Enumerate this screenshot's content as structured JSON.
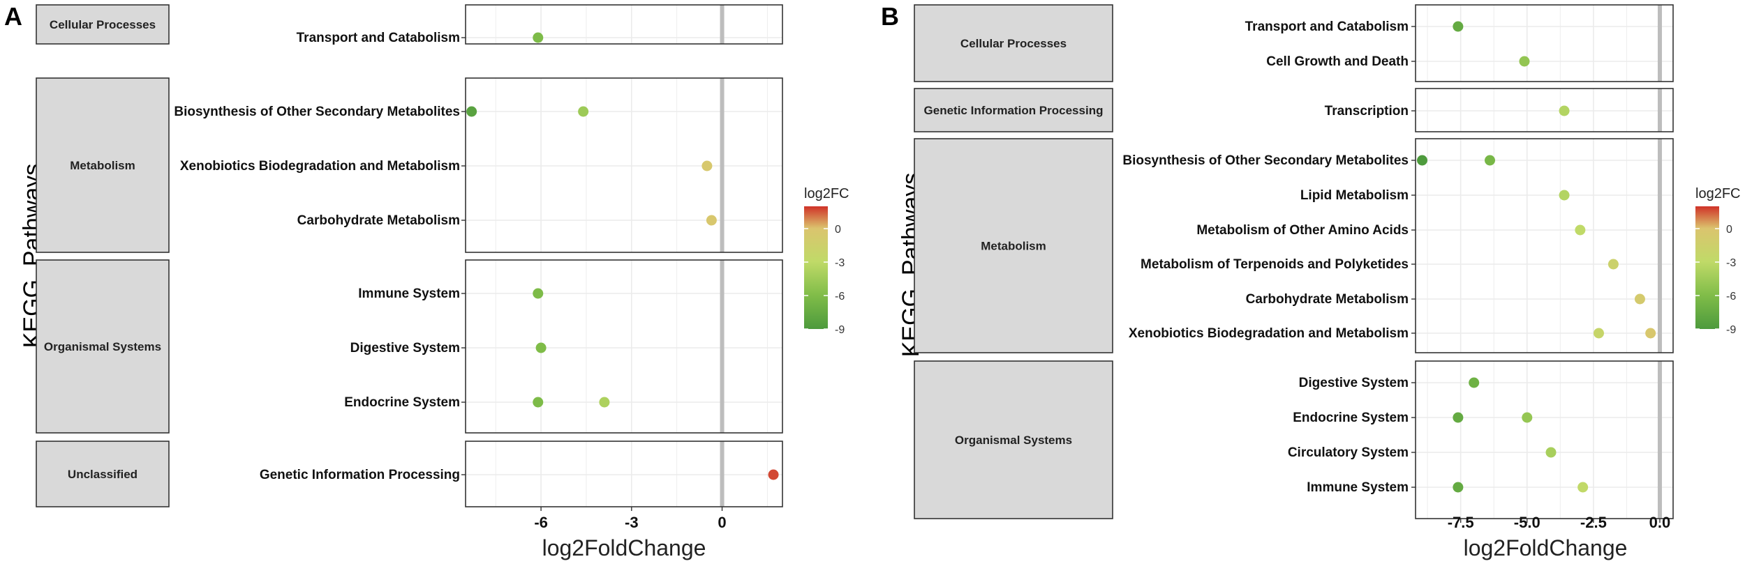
{
  "chart_data": [
    {
      "type": "scatter",
      "panel_label": "A",
      "ylabel": "KEGG_Pathways",
      "xlabel": "log2FoldChange",
      "xlim": [
        -8.5,
        2.0
      ],
      "xticks": [
        -6,
        -3,
        0
      ],
      "xtick_labels": [
        "-6",
        "-3",
        "0"
      ],
      "grid": true,
      "legend": {
        "title": "log2FC",
        "ticks": [
          "0",
          "-3",
          "-6",
          "-9"
        ],
        "range": [
          -9,
          2
        ]
      },
      "groups": [
        {
          "name": "Cellular Processes",
          "rows": [
            "Transport and Catabolism"
          ]
        },
        {
          "name": "Metabolism",
          "rows": [
            "Biosynthesis of Other Secondary Metabolites",
            "Xenobiotics Biodegradation and Metabolism",
            "Carbohydrate Metabolism"
          ]
        },
        {
          "name": "Organismal Systems",
          "rows": [
            "Immune System",
            "Digestive System",
            "Endocrine System"
          ]
        },
        {
          "name": "Unclassified",
          "rows": [
            "Genetic Information Processing"
          ]
        }
      ],
      "points": [
        {
          "pathway": "Transport and Catabolism",
          "log2fc": -6.1
        },
        {
          "pathway": "Biosynthesis of Other Secondary Metabolites",
          "log2fc": -8.3
        },
        {
          "pathway": "Biosynthesis of Other Secondary Metabolites",
          "log2fc": -4.6
        },
        {
          "pathway": "Xenobiotics Biodegradation and Metabolism",
          "log2fc": -0.5
        },
        {
          "pathway": "Carbohydrate Metabolism",
          "log2fc": -0.35
        },
        {
          "pathway": "Immune System",
          "log2fc": -6.1
        },
        {
          "pathway": "Digestive System",
          "log2fc": -6.0
        },
        {
          "pathway": "Endocrine System",
          "log2fc": -6.1
        },
        {
          "pathway": "Endocrine System",
          "log2fc": -3.9
        },
        {
          "pathway": "Genetic Information Processing",
          "log2fc": 1.7
        }
      ]
    },
    {
      "type": "scatter",
      "panel_label": "B",
      "ylabel": "KEGG_Pathways",
      "xlabel": "log2FoldChange",
      "xlim": [
        -9.2,
        0.5
      ],
      "xticks": [
        -7.5,
        -5.0,
        -2.5,
        0.0
      ],
      "xtick_labels": [
        "-7.5",
        "-5.0",
        "-2.5",
        "0.0"
      ],
      "grid": true,
      "legend": {
        "title": "log2FC",
        "ticks": [
          "0",
          "-3",
          "-6",
          "-9"
        ],
        "range": [
          -9,
          2
        ]
      },
      "groups": [
        {
          "name": "Cellular Processes",
          "rows": [
            "Transport and Catabolism",
            "Cell Growth and Death"
          ]
        },
        {
          "name": "Genetic Information Processing",
          "rows": [
            "Transcription"
          ]
        },
        {
          "name": "Metabolism",
          "rows": [
            "Biosynthesis of Other Secondary Metabolites",
            "Lipid Metabolism",
            "Metabolism of Other Amino Acids",
            "Metabolism of Terpenoids and Polyketides",
            "Carbohydrate Metabolism",
            "Xenobiotics Biodegradation and Metabolism"
          ]
        },
        {
          "name": "Organismal Systems",
          "rows": [
            "Digestive System",
            "Endocrine System",
            "Circulatory System",
            "Immune System"
          ]
        }
      ],
      "points": [
        {
          "pathway": "Transport and Catabolism",
          "log2fc": -7.6
        },
        {
          "pathway": "Cell Growth and Death",
          "log2fc": -5.1
        },
        {
          "pathway": "Transcription",
          "log2fc": -3.6
        },
        {
          "pathway": "Biosynthesis of Other Secondary Metabolites",
          "log2fc": -8.95
        },
        {
          "pathway": "Biosynthesis of Other Secondary Metabolites",
          "log2fc": -6.4
        },
        {
          "pathway": "Lipid Metabolism",
          "log2fc": -3.6
        },
        {
          "pathway": "Metabolism of Other Amino Acids",
          "log2fc": -3.0
        },
        {
          "pathway": "Metabolism of Terpenoids and Polyketides",
          "log2fc": -1.75
        },
        {
          "pathway": "Carbohydrate Metabolism",
          "log2fc": -0.75
        },
        {
          "pathway": "Xenobiotics Biodegradation and Metabolism",
          "log2fc": -2.3
        },
        {
          "pathway": "Xenobiotics Biodegradation and Metabolism",
          "log2fc": -0.35
        },
        {
          "pathway": "Digestive System",
          "log2fc": -7.0
        },
        {
          "pathway": "Endocrine System",
          "log2fc": -7.6
        },
        {
          "pathway": "Endocrine System",
          "log2fc": -5.0
        },
        {
          "pathway": "Circulatory System",
          "log2fc": -4.1
        },
        {
          "pathway": "Immune System",
          "log2fc": -7.6
        },
        {
          "pathway": "Immune System",
          "log2fc": -2.9
        }
      ]
    }
  ]
}
